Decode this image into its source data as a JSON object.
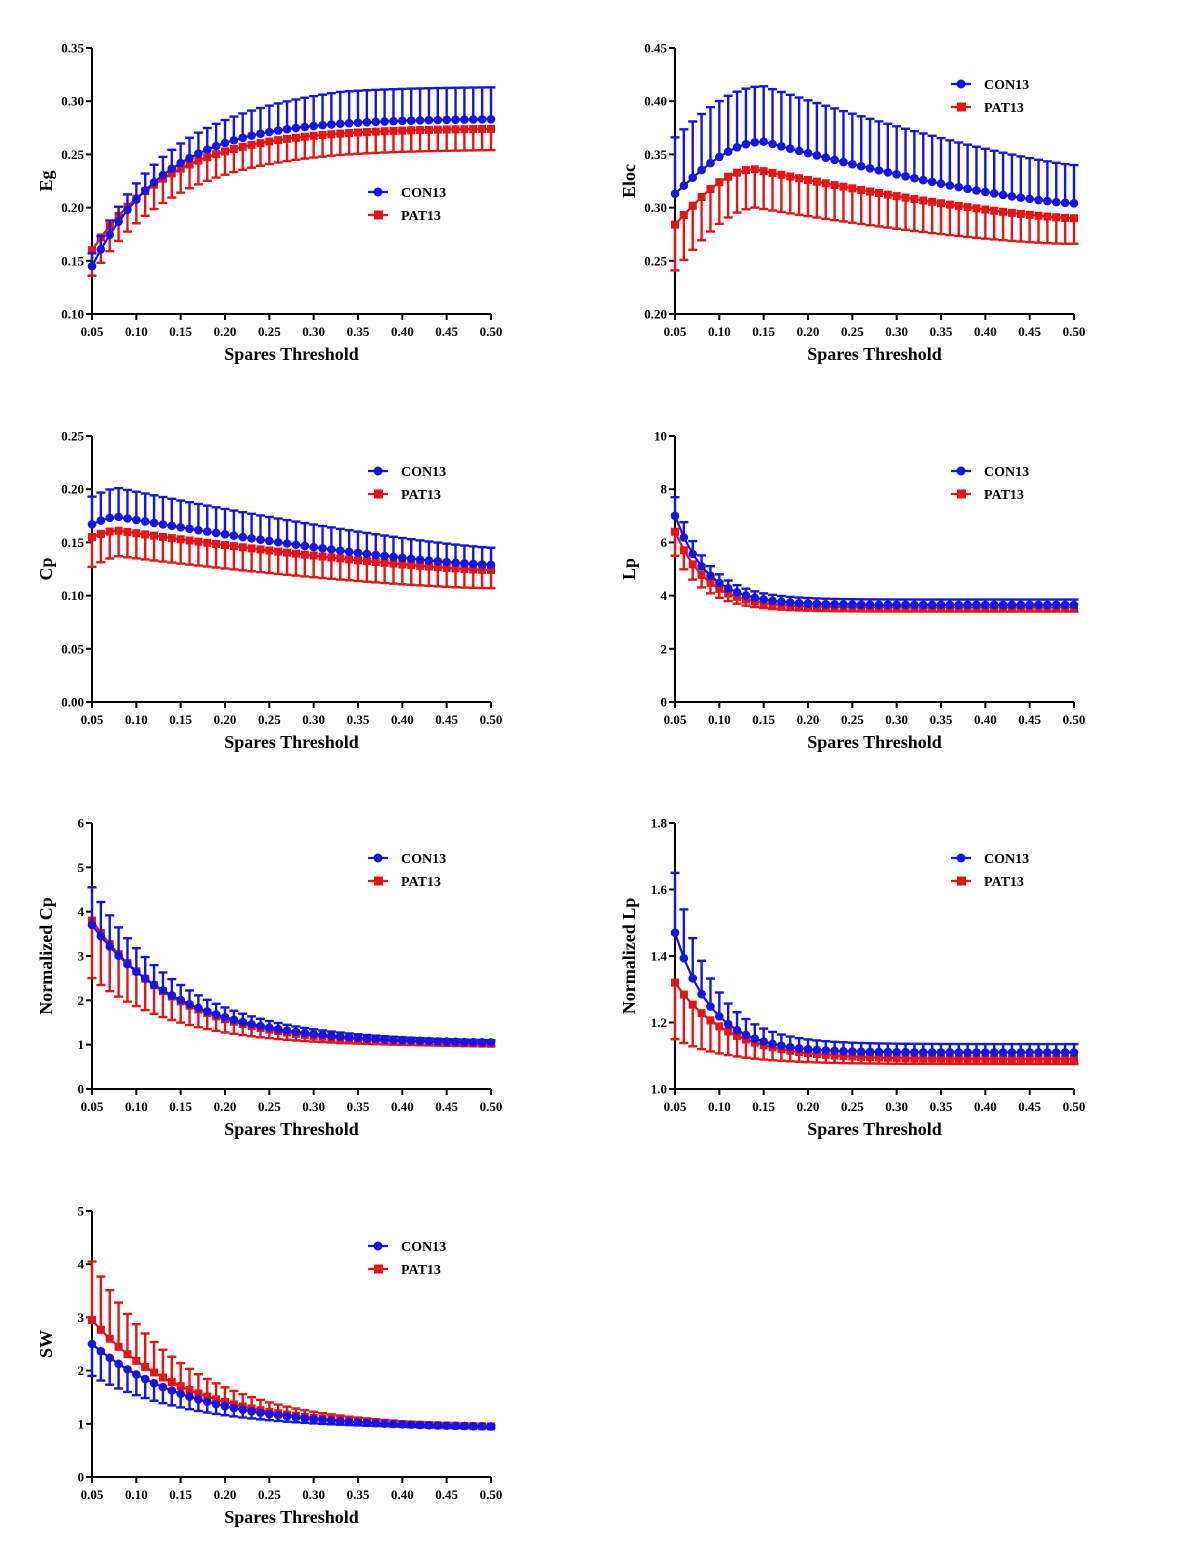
{
  "colors": {
    "con": "#1414e6",
    "pat": "#e61414",
    "axis": "#000000"
  },
  "chart_data": [
    {
      "type": "line",
      "ylabel": "Eg",
      "xlabel": "Spares Threshold",
      "xlim": [
        0.05,
        0.5
      ],
      "ylim": [
        0.1,
        0.35
      ],
      "yticks": [
        "0.10",
        "0.15",
        "0.20",
        "0.25",
        "0.30",
        "0.35"
      ],
      "xticks": [
        "0.05",
        "0.10",
        "0.15",
        "0.20",
        "0.25",
        "0.30",
        "0.35",
        "0.40",
        "0.45",
        "0.50"
      ],
      "legend": [
        "CON13",
        "PAT13"
      ],
      "legend_position": "center-right",
      "x": "0.05:0.01:0.50",
      "series": [
        {
          "name": "CON13",
          "model": "saturating",
          "start": 0.145,
          "end": 0.283,
          "k": 12,
          "err_start": 0.012,
          "err_end": 0.03,
          "err_dir": "up",
          "err_shape": "linear"
        },
        {
          "name": "PAT13",
          "model": "saturating",
          "start": 0.16,
          "end": 0.274,
          "k": 11,
          "err_start": 0.024,
          "err_end": 0.02,
          "err_dir": "down",
          "err_shape": "linear"
        }
      ]
    },
    {
      "type": "line",
      "ylabel": "Eloc",
      "xlabel": "Spares Threshold",
      "xlim": [
        0.05,
        0.5
      ],
      "ylim": [
        0.2,
        0.45
      ],
      "yticks": [
        "0.20",
        "0.25",
        "0.30",
        "0.35",
        "0.40",
        "0.45"
      ],
      "xticks": [
        "0.05",
        "0.10",
        "0.15",
        "0.20",
        "0.25",
        "0.30",
        "0.35",
        "0.40",
        "0.45",
        "0.50"
      ],
      "legend": [
        "CON13",
        "PAT13"
      ],
      "legend_position": "top-right",
      "x": "0.05:0.01:0.50",
      "series": [
        {
          "name": "CON13",
          "model": "peak",
          "start": 0.313,
          "peak": 0.362,
          "peak_x": 0.15,
          "end": 0.304,
          "err_start": 0.053,
          "err_peak": 0.052,
          "err_end": 0.036,
          "err_dir": "up"
        },
        {
          "name": "PAT13",
          "model": "peak",
          "start": 0.284,
          "peak": 0.336,
          "peak_x": 0.14,
          "end": 0.29,
          "err_start": 0.043,
          "err_peak": 0.036,
          "err_end": 0.024,
          "err_dir": "down"
        }
      ]
    },
    {
      "type": "line",
      "ylabel": "Cp",
      "xlabel": "Spares Threshold",
      "xlim": [
        0.05,
        0.5
      ],
      "ylim": [
        0.0,
        0.25
      ],
      "yticks": [
        "0.00",
        "0.05",
        "0.10",
        "0.15",
        "0.20",
        "0.25"
      ],
      "xticks": [
        "0.05",
        "0.10",
        "0.15",
        "0.20",
        "0.25",
        "0.30",
        "0.35",
        "0.40",
        "0.45",
        "0.50"
      ],
      "legend": [
        "CON13",
        "PAT13"
      ],
      "legend_position": "top-right",
      "x": "0.05:0.01:0.50",
      "series": [
        {
          "name": "CON13",
          "model": "peak",
          "start": 0.167,
          "peak": 0.174,
          "peak_x": 0.08,
          "end": 0.129,
          "err_start": 0.026,
          "err_peak": 0.027,
          "err_end": 0.016,
          "err_dir": "up"
        },
        {
          "name": "PAT13",
          "model": "peak",
          "start": 0.155,
          "peak": 0.161,
          "peak_x": 0.08,
          "end": 0.124,
          "err_start": 0.028,
          "err_peak": 0.024,
          "err_end": 0.017,
          "err_dir": "down"
        }
      ]
    },
    {
      "type": "line",
      "ylabel": "Lp",
      "xlabel": "Spares Threshold",
      "xlim": [
        0.05,
        0.5
      ],
      "ylim": [
        0,
        10
      ],
      "yticks": [
        "0",
        "2",
        "4",
        "6",
        "8",
        "10"
      ],
      "xticks": [
        "0.05",
        "0.10",
        "0.15",
        "0.20",
        "0.25",
        "0.30",
        "0.35",
        "0.40",
        "0.45",
        "0.50"
      ],
      "legend": [
        "CON13",
        "PAT13"
      ],
      "legend_position": "top-right",
      "x": "0.05:0.01:0.50",
      "series": [
        {
          "name": "CON13",
          "model": "decay",
          "start": 7.0,
          "end": 3.65,
          "k": 28,
          "err_start": 0.7,
          "err_end": 0.2,
          "err_dir": "up",
          "err_shape": "decay"
        },
        {
          "name": "PAT13",
          "model": "decay",
          "start": 6.4,
          "end": 3.55,
          "k": 28,
          "err_start": 0.9,
          "err_end": 0.15,
          "err_dir": "down",
          "err_shape": "decay"
        }
      ]
    },
    {
      "type": "line",
      "ylabel": "Normalized Cp",
      "xlabel": "Spares Threshold",
      "xlim": [
        0.05,
        0.5
      ],
      "ylim": [
        0,
        6
      ],
      "yticks": [
        "0",
        "1",
        "2",
        "3",
        "4",
        "5",
        "6"
      ],
      "xticks": [
        "0.05",
        "0.10",
        "0.15",
        "0.20",
        "0.25",
        "0.30",
        "0.35",
        "0.40",
        "0.45",
        "0.50"
      ],
      "legend": [
        "CON13",
        "PAT13"
      ],
      "legend_position": "top-right",
      "x": "0.05:0.01:0.50",
      "series": [
        {
          "name": "CON13",
          "model": "decay",
          "start": 3.7,
          "end": 1.05,
          "k": 10,
          "err_start": 0.85,
          "err_end": 0.05,
          "err_dir": "up",
          "err_shape": "decay"
        },
        {
          "name": "PAT13",
          "model": "decay",
          "start": 3.8,
          "end": 1.02,
          "k": 10.5,
          "err_start": 1.3,
          "err_end": 0.05,
          "err_dir": "down",
          "err_shape": "decay"
        }
      ]
    },
    {
      "type": "line",
      "ylabel": "Normalized Lp",
      "xlabel": "Spares Threshold",
      "xlim": [
        0.05,
        0.5
      ],
      "ylim": [
        1.0,
        1.8
      ],
      "yticks": [
        "1.0",
        "1.2",
        "1.4",
        "1.6",
        "1.8"
      ],
      "xticks": [
        "0.05",
        "0.10",
        "0.15",
        "0.20",
        "0.25",
        "0.30",
        "0.35",
        "0.40",
        "0.45",
        "0.50"
      ],
      "legend": [
        "CON13",
        "PAT13"
      ],
      "legend_position": "top-right",
      "x": "0.05:0.01:0.50",
      "series": [
        {
          "name": "CON13",
          "model": "decay",
          "start": 1.47,
          "end": 1.11,
          "k": 24,
          "err_start": 0.18,
          "err_end": 0.025,
          "err_dir": "up",
          "err_shape": "decay"
        },
        {
          "name": "PAT13",
          "model": "decay",
          "start": 1.32,
          "end": 1.09,
          "k": 17,
          "err_start": 0.17,
          "err_end": 0.015,
          "err_dir": "down",
          "err_shape": "decay"
        }
      ]
    },
    {
      "type": "line",
      "ylabel": "SW",
      "xlabel": "Spares Threshold",
      "xlim": [
        0.05,
        0.5
      ],
      "ylim": [
        0,
        5
      ],
      "yticks": [
        "0",
        "1",
        "2",
        "3",
        "4",
        "5"
      ],
      "xticks": [
        "0.05",
        "0.10",
        "0.15",
        "0.20",
        "0.25",
        "0.30",
        "0.35",
        "0.40",
        "0.45",
        "0.50"
      ],
      "legend": [
        "CON13",
        "PAT13"
      ],
      "legend_position": "top-right",
      "x": "0.05:0.01:0.50",
      "series": [
        {
          "name": "CON13",
          "model": "decay",
          "start": 2.5,
          "end": 0.95,
          "k": 9,
          "err_start": 0.6,
          "err_end": 0.03,
          "err_dir": "down",
          "err_shape": "decay"
        },
        {
          "name": "PAT13",
          "model": "decay",
          "start": 2.95,
          "end": 0.95,
          "k": 9.5,
          "err_start": 1.1,
          "err_end": 0.03,
          "err_dir": "up",
          "err_shape": "decay"
        }
      ]
    }
  ]
}
